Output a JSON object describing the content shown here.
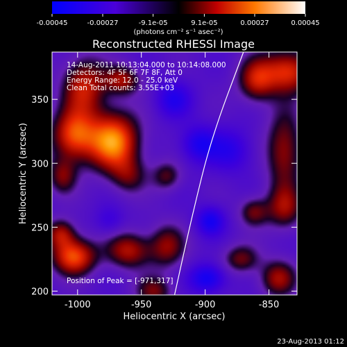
{
  "chart_data": {
    "type": "heatmap",
    "title": "Reconstructed RHESSI Image",
    "xlabel": "Heliocentric X (arcsec)",
    "ylabel": "Heliocentric Y (arcsec)",
    "xlim": [
      -1020,
      -828
    ],
    "ylim": [
      197,
      387
    ],
    "x_ticks": [
      -1000,
      -950,
      -900,
      -850
    ],
    "y_ticks": [
      200,
      250,
      300,
      350
    ],
    "colorbar": {
      "range": [
        -0.00045,
        0.00045
      ],
      "tick_values": [
        -0.00045,
        -0.00027,
        -9.1e-05,
        9.1e-05,
        0.00027,
        0.00045
      ],
      "tick_labels": [
        "-0.00045",
        "-0.00027",
        "-9.1e-05",
        "9.1e-05",
        "0.00027",
        "0.00045"
      ],
      "units": "(photons cm⁻² s⁻¹ asec⁻²)"
    },
    "annotations": [
      "14-Aug-2011 10:13:04.000 to 10:14:08.000",
      "Detectors: 4F 5F 6F 7F 8F, Att 0",
      "Energy Range: 12.0 - 25.0 keV",
      "Clean    Total counts: 3.55E+03"
    ],
    "peak_label": "Position of Peak = [-971,317]",
    "peak": [
      -971,
      317
    ],
    "limb_curve": [
      [
        -924,
        197
      ],
      [
        -910,
        260
      ],
      [
        -895,
        320
      ],
      [
        -870,
        387
      ]
    ],
    "sources": [
      {
        "x": -972,
        "y": 317,
        "sx": 14,
        "sy": 16,
        "amp": 1.0
      },
      {
        "x": -1003,
        "y": 322,
        "sx": 12,
        "sy": 14,
        "amp": 0.8
      },
      {
        "x": -1012,
        "y": 290,
        "sx": 8,
        "sy": 10,
        "amp": 0.45
      },
      {
        "x": -995,
        "y": 360,
        "sx": 12,
        "sy": 16,
        "amp": 0.65
      },
      {
        "x": -965,
        "y": 365,
        "sx": 10,
        "sy": 8,
        "amp": 0.55
      },
      {
        "x": -930,
        "y": 290,
        "sx": 8,
        "sy": 8,
        "amp": 0.4
      },
      {
        "x": -1003,
        "y": 227,
        "sx": 12,
        "sy": 10,
        "amp": 0.85
      },
      {
        "x": -1013,
        "y": 245,
        "sx": 8,
        "sy": 8,
        "amp": 0.55
      },
      {
        "x": -960,
        "y": 232,
        "sx": 12,
        "sy": 10,
        "amp": 0.6
      },
      {
        "x": -930,
        "y": 235,
        "sx": 10,
        "sy": 12,
        "amp": 0.5
      },
      {
        "x": -940,
        "y": 200,
        "sx": 10,
        "sy": 8,
        "amp": 0.45
      },
      {
        "x": -835,
        "y": 372,
        "sx": 14,
        "sy": 12,
        "amp": 0.75
      },
      {
        "x": -860,
        "y": 365,
        "sx": 10,
        "sy": 12,
        "amp": 0.6
      },
      {
        "x": -838,
        "y": 310,
        "sx": 10,
        "sy": 22,
        "amp": 0.55
      },
      {
        "x": -862,
        "y": 262,
        "sx": 8,
        "sy": 8,
        "amp": 0.45
      },
      {
        "x": -838,
        "y": 265,
        "sx": 10,
        "sy": 12,
        "amp": 0.5
      },
      {
        "x": -872,
        "y": 225,
        "sx": 10,
        "sy": 8,
        "amp": 0.45
      },
      {
        "x": -843,
        "y": 210,
        "sx": 10,
        "sy": 10,
        "amp": 0.55
      },
      {
        "x": -960,
        "y": 290,
        "sx": 10,
        "sy": 10,
        "amp": 0.35
      },
      {
        "x": -896,
        "y": 255,
        "sx": 8,
        "sy": 8,
        "amp": -0.5
      },
      {
        "x": -898,
        "y": 210,
        "sx": 10,
        "sy": 8,
        "amp": -0.55
      },
      {
        "x": -905,
        "y": 315,
        "sx": 10,
        "sy": 10,
        "amp": -0.45
      },
      {
        "x": -925,
        "y": 350,
        "sx": 10,
        "sy": 10,
        "amp": -0.4
      },
      {
        "x": -880,
        "y": 310,
        "sx": 12,
        "sy": 12,
        "amp": -0.35
      },
      {
        "x": -975,
        "y": 255,
        "sx": 8,
        "sy": 8,
        "amp": -0.25
      }
    ]
  },
  "footer": {
    "timestamp": "23-Aug-2013 01:12"
  },
  "colors": {
    "background": "#000000",
    "text": "#ffffff",
    "limb": "#ffffff"
  }
}
